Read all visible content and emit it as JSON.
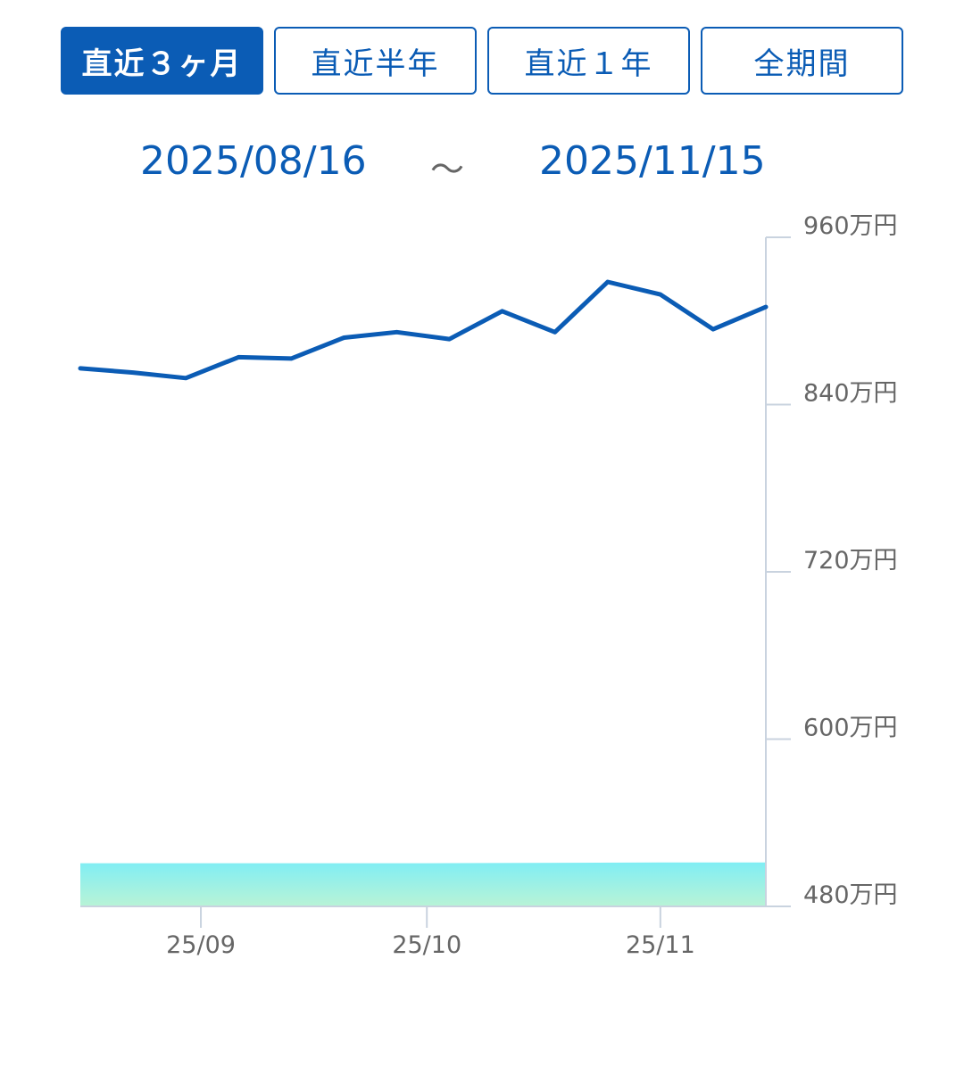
{
  "period_tabs": [
    {
      "label": "直近３ヶ月",
      "active": true
    },
    {
      "label": "直近半年",
      "active": false
    },
    {
      "label": "直近１年",
      "active": false
    },
    {
      "label": "全期間",
      "active": false
    }
  ],
  "date_range": {
    "start": "2025/08/16",
    "separator": "～",
    "end": "2025/11/15"
  },
  "colors": {
    "accent": "#0b5cb5",
    "line": "#0b5cb5",
    "area_top": "#80eef4",
    "area_bottom": "#b9f3d6",
    "axis": "#c9d3df"
  },
  "chart_data": {
    "type": "line",
    "ylim": [
      480,
      960
    ],
    "yticks": [
      "960万円",
      "840万円",
      "720万円",
      "600万円",
      "480万円"
    ],
    "ytick_values": [
      960,
      840,
      720,
      600,
      480
    ],
    "xticks": [
      {
        "label": "25/09",
        "date": "2025-09-01"
      },
      {
        "label": "25/10",
        "date": "2025-10-01"
      },
      {
        "label": "25/11",
        "date": "2025-11-01"
      }
    ],
    "x_range": [
      "2025-08-16",
      "2025-11-15"
    ],
    "series": [
      {
        "kind": "line",
        "x": [
          "2025-08-16",
          "2025-08-23",
          "2025-08-30",
          "2025-09-06",
          "2025-09-13",
          "2025-09-20",
          "2025-09-27",
          "2025-10-04",
          "2025-10-11",
          "2025-10-18",
          "2025-10-25",
          "2025-11-01",
          "2025-11-08",
          "2025-11-15"
        ],
        "values": [
          866,
          863,
          859,
          874,
          873,
          888,
          892,
          887,
          907,
          892,
          928,
          919,
          894,
          910
        ]
      },
      {
        "kind": "area",
        "x": [
          "2025-08-16",
          "2025-09-01",
          "2025-10-01",
          "2025-11-01",
          "2025-11-15"
        ],
        "values": [
          511,
          511,
          511,
          511.5,
          511.5
        ]
      }
    ],
    "grid": false
  }
}
